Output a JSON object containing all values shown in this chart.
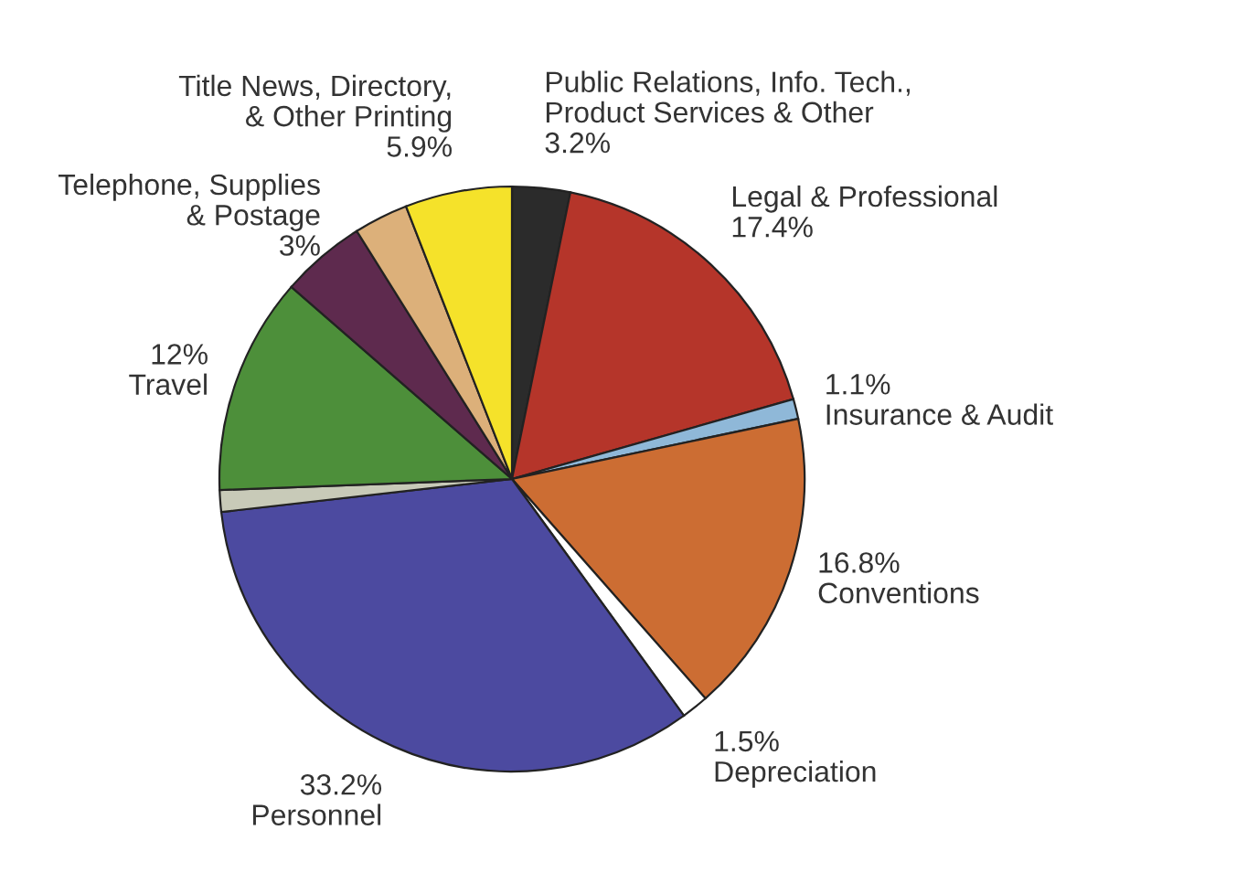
{
  "chart_data": {
    "type": "pie",
    "categories": [
      "Public Relations, Info. Tech.,\nProduct Services & Other",
      "Legal & Professional",
      "Insurance & Audit",
      "Conventions",
      "Depreciation",
      "Personnel",
      null,
      "Travel",
      null,
      "Telephone, Supplies\n& Postage",
      "Title News, Directory,\n& Other Printing"
    ],
    "values": [
      3.2,
      17.4,
      1.1,
      16.8,
      1.5,
      33.2,
      1.2,
      12,
      4.7,
      3,
      5.9
    ],
    "value_labels": [
      "3.2%",
      "17.4%",
      "1.1%",
      "16.8%",
      "1.5%",
      "33.2%",
      null,
      "12%",
      null,
      "3%",
      "5.9%"
    ],
    "colors": [
      "#2b2b2b",
      "#b5352a",
      "#8fb8d8",
      "#cc6d33",
      "#ffffff",
      "#4c4aa0",
      "#c8cab8",
      "#4d8f3a",
      "#5e2a4e",
      "#dcb07a",
      "#f5e22a"
    ]
  }
}
